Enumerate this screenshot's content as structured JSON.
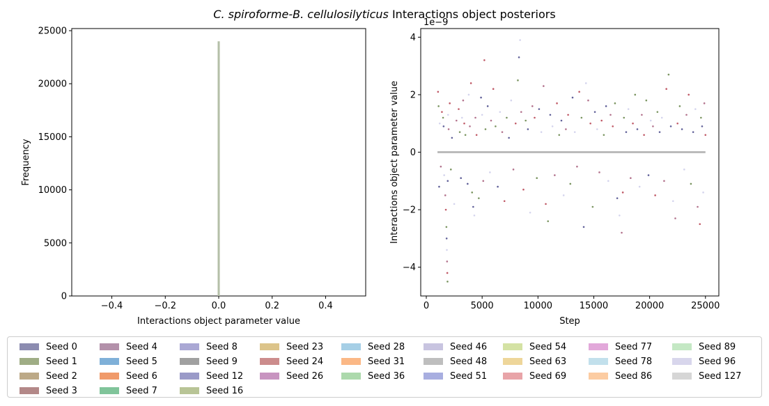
{
  "figure": {
    "title_italic": "C. spiroforme-B. cellulosilyticus",
    "title_rest": " Interactions object posteriors"
  },
  "chart_data": [
    {
      "type": "bar",
      "subtype": "histogram",
      "xlabel": "Interactions object parameter value",
      "ylabel": "Frequency",
      "xlim": [
        -0.55,
        0.55
      ],
      "ylim": [
        0,
        25200
      ],
      "xticks": [
        "−0.4",
        "−0.2",
        "0.0",
        "0.2",
        "0.4"
      ],
      "xtick_values": [
        -0.4,
        -0.2,
        0.0,
        0.2,
        0.4
      ],
      "yticks": [
        "0",
        "5000",
        "10000",
        "15000",
        "20000",
        "25000"
      ],
      "ytick_values": [
        0,
        5000,
        10000,
        15000,
        20000,
        25000
      ],
      "bins": [
        {
          "x0": -0.004,
          "x1": 0.004,
          "count": 24000
        }
      ],
      "bar_color": "#b4bfa8",
      "grid": false
    },
    {
      "type": "scatter",
      "xlabel": "Step",
      "ylabel": "Interactions object parameter value",
      "scale_label": "1e−9",
      "xlim": [
        -500,
        26200
      ],
      "ylim": [
        -5.0,
        4.3
      ],
      "xticks": [
        "0",
        "5000",
        "10000",
        "15000",
        "20000",
        "25000"
      ],
      "xtick_values": [
        0,
        5000,
        10000,
        15000,
        20000,
        25000
      ],
      "yticks": [
        "−4",
        "−2",
        "0",
        "2",
        "4"
      ],
      "ytick_values": [
        -4,
        -2,
        0,
        2,
        4
      ],
      "baseline": {
        "x": [
          1000,
          25000
        ],
        "y": 0,
        "color": "#bbbbbb"
      },
      "point_colors": [
        "#b03040",
        "#5a7a3a",
        "#3a3a80",
        "#c9c9e8",
        "#a05070"
      ],
      "points": [
        [
          1050,
          2.1
        ],
        [
          1100,
          1.6
        ],
        [
          1150,
          -1.2
        ],
        [
          1200,
          1.0
        ],
        [
          1300,
          -0.5
        ],
        [
          1400,
          1.4
        ],
        [
          1500,
          1.2
        ],
        [
          1550,
          0.9
        ],
        [
          1600,
          -0.8
        ],
        [
          1700,
          -1.5
        ],
        [
          1750,
          -2.0
        ],
        [
          1800,
          -2.6
        ],
        [
          1820,
          -3.0
        ],
        [
          1840,
          -3.4
        ],
        [
          1860,
          -3.8
        ],
        [
          1880,
          -4.2
        ],
        [
          1900,
          -4.5
        ],
        [
          1920,
          -1.0
        ],
        [
          1950,
          1.3
        ],
        [
          2000,
          0.8
        ],
        [
          2100,
          1.7
        ],
        [
          2200,
          -0.6
        ],
        [
          2300,
          0.5
        ],
        [
          2500,
          -1.8
        ],
        [
          2700,
          1.1
        ],
        [
          2900,
          1.5
        ],
        [
          3000,
          0.7
        ],
        [
          3100,
          -0.9
        ],
        [
          3200,
          1.2
        ],
        [
          3300,
          1.8
        ],
        [
          3400,
          1.0
        ],
        [
          3500,
          0.6
        ],
        [
          3700,
          -1.1
        ],
        [
          3800,
          2.0
        ],
        [
          3900,
          0.9
        ],
        [
          4000,
          2.4
        ],
        [
          4100,
          -1.4
        ],
        [
          4200,
          -1.9
        ],
        [
          4300,
          -2.2
        ],
        [
          4400,
          1.2
        ],
        [
          4500,
          0.6
        ],
        [
          4700,
          -1.6
        ],
        [
          4900,
          1.9
        ],
        [
          5000,
          1.3
        ],
        [
          5100,
          -1.0
        ],
        [
          5200,
          3.2
        ],
        [
          5300,
          0.8
        ],
        [
          5500,
          1.6
        ],
        [
          5700,
          -0.7
        ],
        [
          5800,
          1.1
        ],
        [
          6000,
          2.2
        ],
        [
          6200,
          0.9
        ],
        [
          6400,
          -1.2
        ],
        [
          6600,
          1.4
        ],
        [
          6800,
          0.7
        ],
        [
          7000,
          -1.7
        ],
        [
          7200,
          1.2
        ],
        [
          7400,
          0.5
        ],
        [
          7600,
          1.8
        ],
        [
          7800,
          -0.6
        ],
        [
          8000,
          1.0
        ],
        [
          8200,
          2.5
        ],
        [
          8300,
          3.3
        ],
        [
          8400,
          3.9
        ],
        [
          8500,
          1.4
        ],
        [
          8700,
          -1.3
        ],
        [
          8900,
          1.1
        ],
        [
          9100,
          0.8
        ],
        [
          9300,
          -2.1
        ],
        [
          9500,
          1.6
        ],
        [
          9700,
          1.2
        ],
        [
          9900,
          -0.9
        ],
        [
          10100,
          1.5
        ],
        [
          10300,
          0.7
        ],
        [
          10500,
          2.3
        ],
        [
          10700,
          -1.8
        ],
        [
          10900,
          -2.4
        ],
        [
          11100,
          1.3
        ],
        [
          11300,
          0.9
        ],
        [
          11500,
          -0.8
        ],
        [
          11700,
          1.7
        ],
        [
          11900,
          0.6
        ],
        [
          12100,
          1.1
        ],
        [
          12300,
          -1.5
        ],
        [
          12500,
          0.8
        ],
        [
          12700,
          1.3
        ],
        [
          12900,
          -1.1
        ],
        [
          13100,
          1.9
        ],
        [
          13300,
          0.7
        ],
        [
          13500,
          -0.5
        ],
        [
          13700,
          2.1
        ],
        [
          13900,
          1.2
        ],
        [
          14100,
          -2.6
        ],
        [
          14300,
          2.4
        ],
        [
          14500,
          1.8
        ],
        [
          14700,
          1.0
        ],
        [
          14900,
          -1.9
        ],
        [
          15100,
          1.4
        ],
        [
          15300,
          0.8
        ],
        [
          15500,
          -0.7
        ],
        [
          15700,
          1.1
        ],
        [
          15900,
          0.6
        ],
        [
          16100,
          1.6
        ],
        [
          16300,
          -1.0
        ],
        [
          16500,
          1.3
        ],
        [
          16700,
          0.9
        ],
        [
          16900,
          1.7
        ],
        [
          17100,
          -1.6
        ],
        [
          17300,
          -2.2
        ],
        [
          17500,
          -2.8
        ],
        [
          17600,
          -1.4
        ],
        [
          17700,
          1.2
        ],
        [
          17900,
          0.7
        ],
        [
          18100,
          1.5
        ],
        [
          18300,
          -0.9
        ],
        [
          18500,
          1.0
        ],
        [
          18700,
          2.0
        ],
        [
          18900,
          0.8
        ],
        [
          19100,
          -1.2
        ],
        [
          19300,
          1.3
        ],
        [
          19500,
          0.6
        ],
        [
          19700,
          1.8
        ],
        [
          19900,
          -0.8
        ],
        [
          20100,
          1.1
        ],
        [
          20300,
          0.9
        ],
        [
          20500,
          -1.5
        ],
        [
          20700,
          1.4
        ],
        [
          20900,
          0.7
        ],
        [
          21100,
          1.2
        ],
        [
          21300,
          -1.0
        ],
        [
          21500,
          2.2
        ],
        [
          21700,
          2.7
        ],
        [
          21900,
          0.9
        ],
        [
          22100,
          -1.7
        ],
        [
          22300,
          -2.3
        ],
        [
          22500,
          1.0
        ],
        [
          22700,
          1.6
        ],
        [
          22900,
          0.8
        ],
        [
          23100,
          -0.6
        ],
        [
          23300,
          1.3
        ],
        [
          23500,
          2.0
        ],
        [
          23700,
          -1.1
        ],
        [
          23900,
          0.7
        ],
        [
          24100,
          1.5
        ],
        [
          24300,
          -1.9
        ],
        [
          24500,
          -2.5
        ],
        [
          24600,
          1.2
        ],
        [
          24700,
          0.9
        ],
        [
          24800,
          -1.4
        ],
        [
          24900,
          1.7
        ],
        [
          25000,
          0.6
        ]
      ],
      "grid": false
    }
  ],
  "legend": {
    "placement": "bottom",
    "columns": 9,
    "items": [
      {
        "label": "Seed 0",
        "color": "#8c8cb0"
      },
      {
        "label": "Seed 1",
        "color": "#9fad85"
      },
      {
        "label": "Seed 2",
        "color": "#bca987"
      },
      {
        "label": "Seed 3",
        "color": "#b38888"
      },
      {
        "label": "Seed 4",
        "color": "#b391aa"
      },
      {
        "label": "Seed 5",
        "color": "#7fb0d8"
      },
      {
        "label": "Seed 6",
        "color": "#f09a6a"
      },
      {
        "label": "Seed 7",
        "color": "#80c49a"
      },
      {
        "label": "Seed 8",
        "color": "#aaa8d4"
      },
      {
        "label": "Seed 9",
        "color": "#a0a0a0"
      },
      {
        "label": "Seed 12",
        "color": "#9a9ac8"
      },
      {
        "label": "Seed 16",
        "color": "#b8c496"
      },
      {
        "label": "Seed 23",
        "color": "#dcc48a"
      },
      {
        "label": "Seed 24",
        "color": "#cc8c8c"
      },
      {
        "label": "Seed 26",
        "color": "#c894c0"
      },
      {
        "label": "Seed 28",
        "color": "#a6cfe6"
      },
      {
        "label": "Seed 31",
        "color": "#fbb886"
      },
      {
        "label": "Seed 36",
        "color": "#acd9ac"
      },
      {
        "label": "Seed 46",
        "color": "#c8c4e0"
      },
      {
        "label": "Seed 48",
        "color": "#bebebe"
      },
      {
        "label": "Seed 51",
        "color": "#a8aee0"
      },
      {
        "label": "Seed 54",
        "color": "#d4e2a4"
      },
      {
        "label": "Seed 63",
        "color": "#eed69a"
      },
      {
        "label": "Seed 69",
        "color": "#e8a4a8"
      },
      {
        "label": "Seed 77",
        "color": "#e2a8da"
      },
      {
        "label": "Seed 78",
        "color": "#c2e0ec"
      },
      {
        "label": "Seed 86",
        "color": "#fccca2"
      },
      {
        "label": "Seed 89",
        "color": "#c4e8c4"
      },
      {
        "label": "Seed 96",
        "color": "#d8d6ec"
      },
      {
        "label": "Seed 127",
        "color": "#d6d6d6"
      }
    ]
  }
}
